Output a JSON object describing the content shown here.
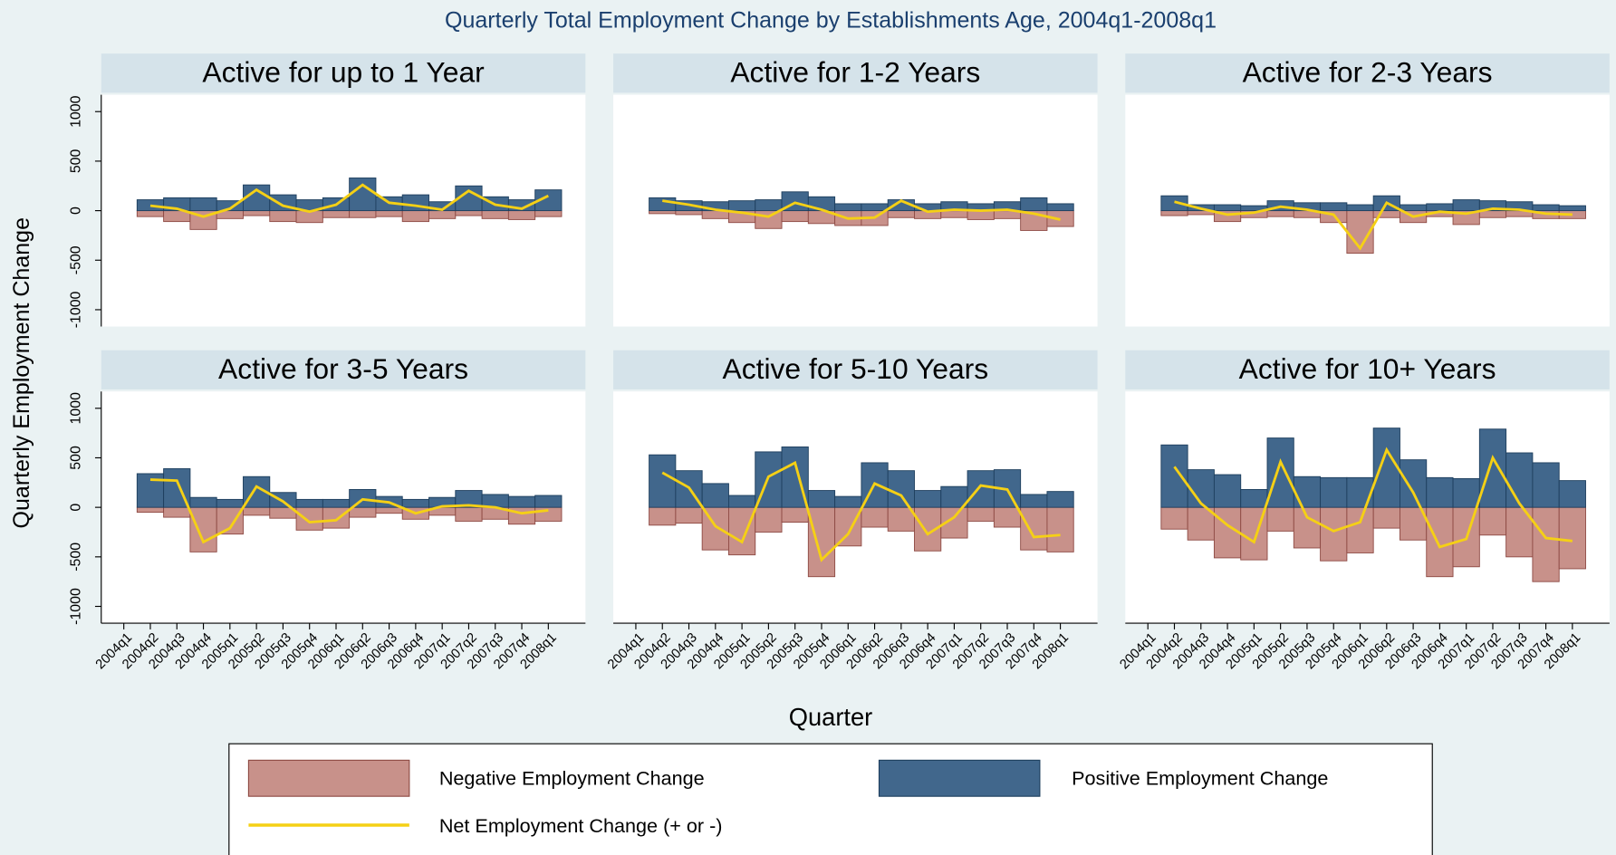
{
  "title": "Quarterly Total Employment Change by Establishments Age, 2004q1-2008q1",
  "y_label": "Quarterly Employment Change",
  "x_label": "Quarter",
  "chart_data": [
    {
      "type": "bar",
      "title": "Active for up to 1 Year",
      "categories": [
        "2004q1",
        "2004q2",
        "2004q3",
        "2004q4",
        "2005q1",
        "2005q2",
        "2005q3",
        "2005q4",
        "2006q1",
        "2006q2",
        "2006q3",
        "2006q4",
        "2007q1",
        "2007q2",
        "2007q3",
        "2007q4",
        "2008q1"
      ],
      "ylim": [
        -1170,
        1170
      ],
      "yticks": [
        -1000,
        -500,
        0,
        500,
        1000
      ],
      "series": [
        {
          "name": "Negative Employment Change",
          "type": "bar",
          "color": "#c8918a",
          "values": [
            null,
            -60,
            -110,
            -190,
            -80,
            -50,
            -110,
            -120,
            -70,
            -70,
            -60,
            -110,
            -80,
            -50,
            -80,
            -90,
            -60
          ]
        },
        {
          "name": "Positive Employment Change",
          "type": "bar",
          "color": "#41678c",
          "values": [
            null,
            110,
            130,
            130,
            100,
            260,
            160,
            110,
            130,
            330,
            140,
            160,
            90,
            250,
            140,
            110,
            210
          ]
        },
        {
          "name": "Net Employment Change (+ or -)",
          "type": "line",
          "color": "#f5d015",
          "values": [
            null,
            50,
            20,
            -60,
            20,
            210,
            50,
            -10,
            60,
            260,
            80,
            50,
            10,
            200,
            60,
            20,
            150
          ]
        }
      ]
    },
    {
      "type": "bar",
      "title": "Active for 1-2 Years",
      "categories": [
        "2004q1",
        "2004q2",
        "2004q3",
        "2004q4",
        "2005q1",
        "2005q2",
        "2005q3",
        "2005q4",
        "2006q1",
        "2006q2",
        "2006q3",
        "2006q4",
        "2007q1",
        "2007q2",
        "2007q3",
        "2007q4",
        "2008q1"
      ],
      "ylim": [
        -1170,
        1170
      ],
      "yticks": [
        -1000,
        -500,
        0,
        500,
        1000
      ],
      "series": [
        {
          "name": "Negative Employment Change",
          "type": "bar",
          "color": "#c8918a",
          "values": [
            null,
            -30,
            -40,
            -80,
            -120,
            -180,
            -110,
            -130,
            -150,
            -150,
            -70,
            -80,
            -70,
            -90,
            -80,
            -200,
            -160
          ]
        },
        {
          "name": "Positive Employment Change",
          "type": "bar",
          "color": "#41678c",
          "values": [
            null,
            130,
            100,
            90,
            100,
            110,
            190,
            140,
            70,
            70,
            110,
            70,
            90,
            70,
            90,
            130,
            70
          ]
        },
        {
          "name": "Net Employment Change (+ or -)",
          "type": "line",
          "color": "#f5d015",
          "values": [
            null,
            100,
            60,
            10,
            -20,
            -60,
            80,
            10,
            -80,
            -70,
            100,
            -10,
            10,
            0,
            10,
            -30,
            -90
          ]
        }
      ]
    },
    {
      "type": "bar",
      "title": "Active for 2-3 Years",
      "categories": [
        "2004q1",
        "2004q2",
        "2004q3",
        "2004q4",
        "2005q1",
        "2005q2",
        "2005q3",
        "2005q4",
        "2006q1",
        "2006q2",
        "2006q3",
        "2006q4",
        "2007q1",
        "2007q2",
        "2007q3",
        "2007q4",
        "2008q1"
      ],
      "ylim": [
        -1170,
        1170
      ],
      "yticks": [
        -1000,
        -500,
        0,
        500,
        1000
      ],
      "series": [
        {
          "name": "Negative Employment Change",
          "type": "bar",
          "color": "#c8918a",
          "values": [
            null,
            -50,
            -40,
            -110,
            -70,
            -60,
            -70,
            -120,
            -430,
            -70,
            -120,
            -60,
            -140,
            -70,
            -60,
            -80,
            -80
          ]
        },
        {
          "name": "Positive Employment Change",
          "type": "bar",
          "color": "#41678c",
          "values": [
            null,
            150,
            60,
            60,
            50,
            100,
            80,
            80,
            60,
            150,
            60,
            70,
            110,
            100,
            90,
            60,
            50
          ]
        },
        {
          "name": "Net Employment Change (+ or -)",
          "type": "line",
          "color": "#f5d015",
          "values": [
            null,
            90,
            20,
            -40,
            -20,
            40,
            10,
            -40,
            -380,
            80,
            -60,
            -10,
            -30,
            20,
            10,
            -30,
            -40
          ]
        }
      ]
    },
    {
      "type": "bar",
      "title": "Active for 3-5 Years",
      "categories": [
        "2004q1",
        "2004q2",
        "2004q3",
        "2004q4",
        "2005q1",
        "2005q2",
        "2005q3",
        "2005q4",
        "2006q1",
        "2006q2",
        "2006q3",
        "2006q4",
        "2007q1",
        "2007q2",
        "2007q3",
        "2007q4",
        "2008q1"
      ],
      "ylim": [
        -1170,
        1170
      ],
      "yticks": [
        -1000,
        -500,
        0,
        500,
        1000
      ],
      "series": [
        {
          "name": "Negative Employment Change",
          "type": "bar",
          "color": "#c8918a",
          "values": [
            null,
            -50,
            -100,
            -450,
            -270,
            -80,
            -110,
            -230,
            -210,
            -100,
            -60,
            -120,
            -80,
            -140,
            -120,
            -170,
            -140
          ]
        },
        {
          "name": "Positive Employment Change",
          "type": "bar",
          "color": "#41678c",
          "values": [
            null,
            340,
            390,
            100,
            80,
            310,
            150,
            80,
            80,
            180,
            110,
            80,
            100,
            170,
            130,
            110,
            120
          ]
        },
        {
          "name": "Net Employment Change (+ or -)",
          "type": "line",
          "color": "#f5d015",
          "values": [
            null,
            280,
            270,
            -350,
            -210,
            210,
            60,
            -150,
            -130,
            80,
            50,
            -60,
            10,
            20,
            0,
            -60,
            -30
          ]
        }
      ]
    },
    {
      "type": "bar",
      "title": "Active for 5-10 Years",
      "categories": [
        "2004q1",
        "2004q2",
        "2004q3",
        "2004q4",
        "2005q1",
        "2005q2",
        "2005q3",
        "2005q4",
        "2006q1",
        "2006q2",
        "2006q3",
        "2006q4",
        "2007q1",
        "2007q2",
        "2007q3",
        "2007q4",
        "2008q1"
      ],
      "ylim": [
        -1170,
        1170
      ],
      "yticks": [
        -1000,
        -500,
        0,
        500,
        1000
      ],
      "series": [
        {
          "name": "Negative Employment Change",
          "type": "bar",
          "color": "#c8918a",
          "values": [
            null,
            -180,
            -160,
            -430,
            -480,
            -250,
            -150,
            -700,
            -390,
            -200,
            -240,
            -440,
            -310,
            -140,
            -200,
            -430,
            -450
          ]
        },
        {
          "name": "Positive Employment Change",
          "type": "bar",
          "color": "#41678c",
          "values": [
            null,
            530,
            370,
            240,
            120,
            560,
            610,
            170,
            110,
            450,
            370,
            170,
            210,
            370,
            380,
            130,
            160
          ]
        },
        {
          "name": "Net Employment Change (+ or -)",
          "type": "line",
          "color": "#f5d015",
          "values": [
            null,
            350,
            200,
            -190,
            -350,
            310,
            450,
            -530,
            -270,
            240,
            120,
            -270,
            -100,
            220,
            180,
            -300,
            -280
          ]
        }
      ]
    },
    {
      "type": "bar",
      "title": "Active for 10+ Years",
      "categories": [
        "2004q1",
        "2004q2",
        "2004q3",
        "2004q4",
        "2005q1",
        "2005q2",
        "2005q3",
        "2005q4",
        "2006q1",
        "2006q2",
        "2006q3",
        "2006q4",
        "2007q1",
        "2007q2",
        "2007q3",
        "2007q4",
        "2008q1"
      ],
      "ylim": [
        -1170,
        1170
      ],
      "yticks": [
        -1000,
        -500,
        0,
        500,
        1000
      ],
      "series": [
        {
          "name": "Negative Employment Change",
          "type": "bar",
          "color": "#c8918a",
          "values": [
            null,
            -220,
            -330,
            -510,
            -530,
            -240,
            -410,
            -540,
            -460,
            -210,
            -330,
            -700,
            -600,
            -280,
            -500,
            -750,
            -620
          ]
        },
        {
          "name": "Positive Employment Change",
          "type": "bar",
          "color": "#41678c",
          "values": [
            null,
            630,
            380,
            330,
            180,
            700,
            310,
            300,
            300,
            800,
            480,
            300,
            290,
            790,
            550,
            450,
            270
          ]
        },
        {
          "name": "Net Employment Change (+ or -)",
          "type": "line",
          "color": "#f5d015",
          "values": [
            null,
            410,
            40,
            -180,
            -350,
            460,
            -100,
            -240,
            -150,
            580,
            150,
            -400,
            -320,
            500,
            40,
            -310,
            -340
          ]
        }
      ]
    }
  ]
}
